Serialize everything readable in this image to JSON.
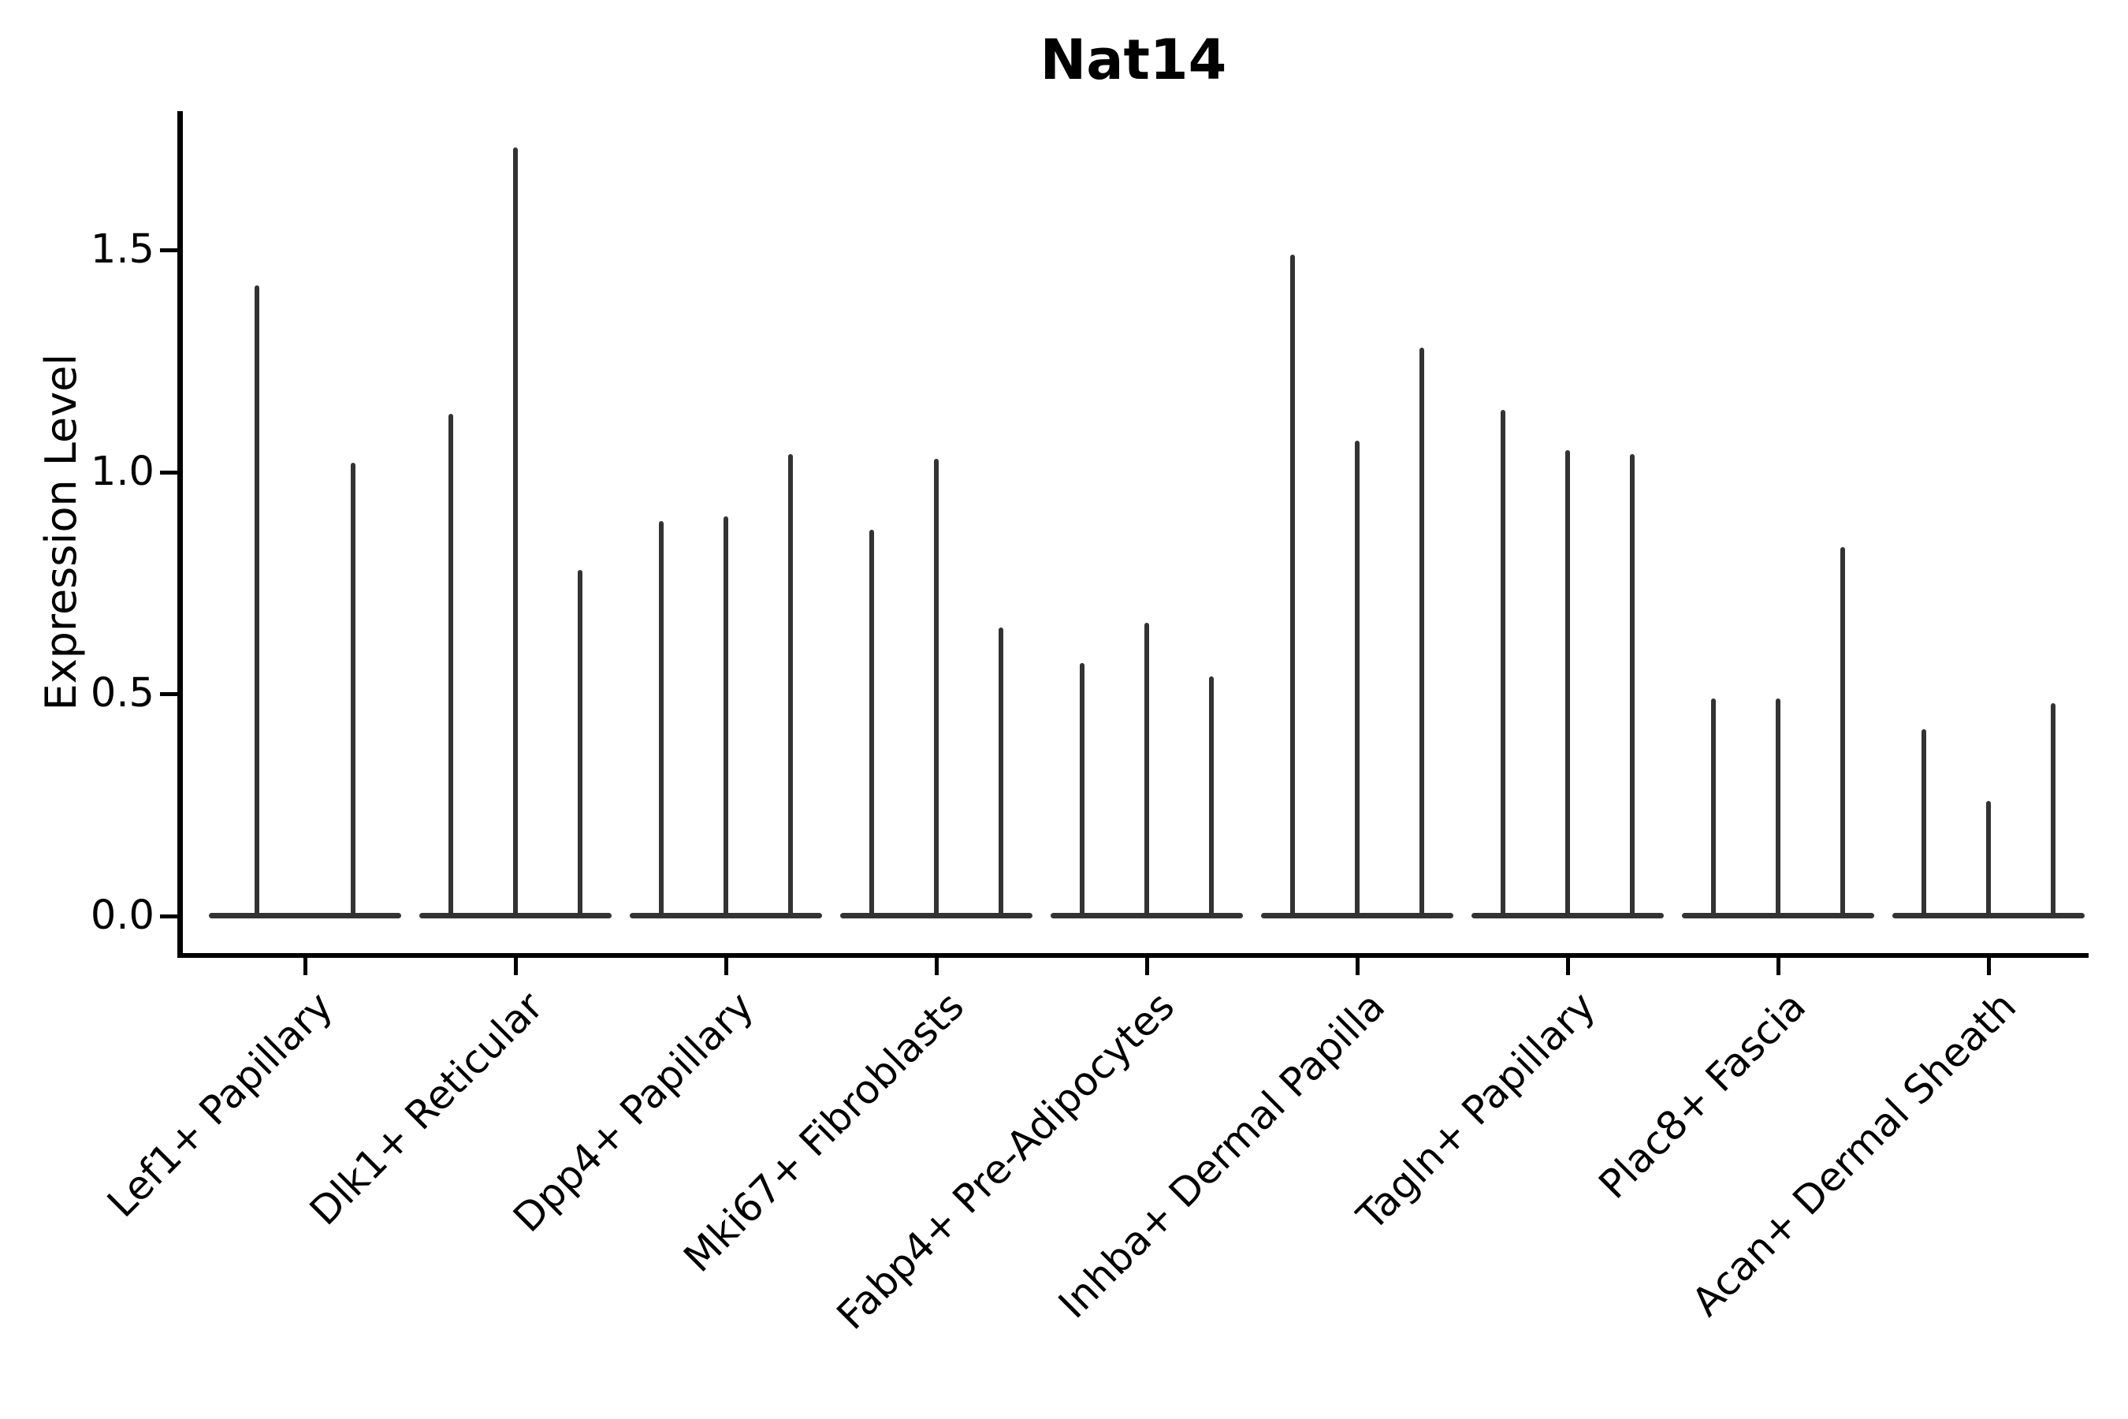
{
  "chart_data": {
    "type": "violin",
    "title": "Nat14",
    "ylabel": "Expression Level",
    "xlabel": "",
    "categories": [
      "Lef1+ Papillary",
      "Dlk1+ Reticular",
      "Dpp4+ Papillary",
      "Mki67+ Fibroblasts",
      "Fabp4+ Pre-Adipocytes",
      "Inhba+ Dermal Papilla",
      "Tagln+ Papillary",
      "Plac8+ Fascia",
      "Acan+ Dermal Sheath"
    ],
    "series": [
      {
        "category": "Lef1+ Papillary",
        "violin_maxima": [
          1.42,
          1.02
        ]
      },
      {
        "category": "Dlk1+ Reticular",
        "violin_maxima": [
          1.13,
          1.73,
          0.78
        ]
      },
      {
        "category": "Dpp4+ Papillary",
        "violin_maxima": [
          0.89,
          0.9,
          1.04
        ]
      },
      {
        "category": "Mki67+ Fibroblasts",
        "violin_maxima": [
          0.87,
          1.03,
          0.65
        ]
      },
      {
        "category": "Fabp4+ Pre-Adipocytes",
        "violin_maxima": [
          0.57,
          0.66,
          0.54
        ]
      },
      {
        "category": "Inhba+ Dermal Papilla",
        "violin_maxima": [
          1.49,
          1.07,
          1.28
        ]
      },
      {
        "category": "Tagln+ Papillary",
        "violin_maxima": [
          1.14,
          1.05,
          1.04
        ]
      },
      {
        "category": "Plac8+ Fascia",
        "violin_maxima": [
          0.49,
          0.49,
          0.83
        ]
      },
      {
        "category": "Acan+ Dermal Sheath",
        "violin_maxima": [
          0.42,
          0.26,
          0.48
        ]
      }
    ],
    "yticks": [
      0,
      0.5,
      1.0,
      1.5
    ],
    "ytick_labels": [
      "0.0",
      "0.5",
      "1.0",
      "1.5"
    ],
    "ylim": [
      0,
      1.81
    ],
    "grid": false,
    "legend": null,
    "note": "Sparse-expression violins: each violin collapses to a thin vertical spike reaching its max value, with a wide flat violin base at expression 0.",
    "style": {
      "violin_color": "#333333",
      "axis_color": "#000000",
      "background": "#ffffff"
    }
  }
}
